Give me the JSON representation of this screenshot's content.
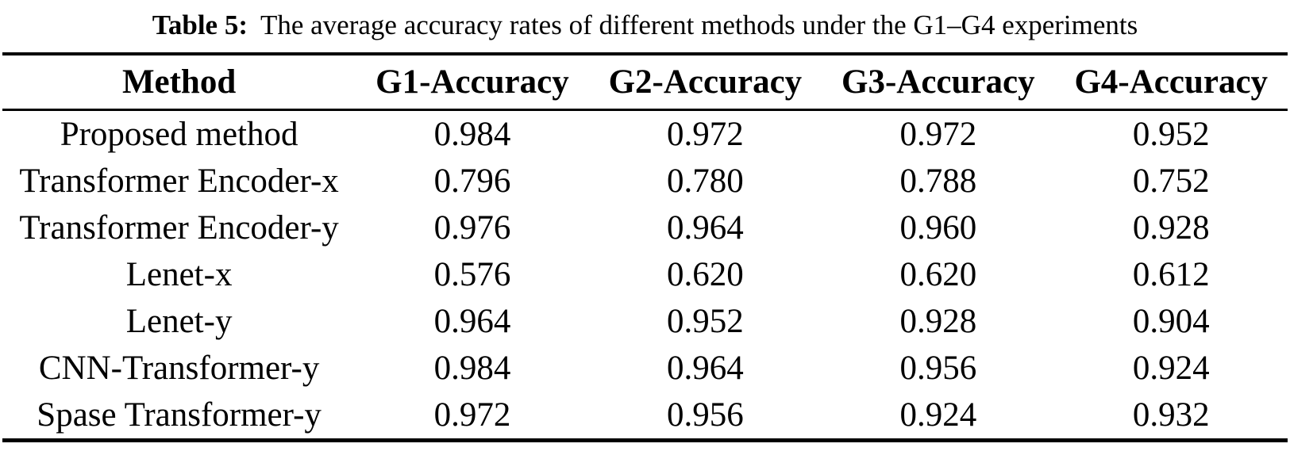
{
  "caption": {
    "label": "Table 5:",
    "text": "The average accuracy rates of different methods under the G1–G4 experiments"
  },
  "table": {
    "columns": [
      "Method",
      "G1-Accuracy",
      "G2-Accuracy",
      "G3-Accuracy",
      "G4-Accuracy"
    ],
    "rows": [
      {
        "method": "Proposed method",
        "values": [
          "0.984",
          "0.972",
          "0.972",
          "0.952"
        ]
      },
      {
        "method": "Transformer Encoder-x",
        "values": [
          "0.796",
          "0.780",
          "0.788",
          "0.752"
        ]
      },
      {
        "method": "Transformer Encoder-y",
        "values": [
          "0.976",
          "0.964",
          "0.960",
          "0.928"
        ]
      },
      {
        "method": "Lenet-x",
        "values": [
          "0.576",
          "0.620",
          "0.620",
          "0.612"
        ]
      },
      {
        "method": "Lenet-y",
        "values": [
          "0.964",
          "0.952",
          "0.928",
          "0.904"
        ]
      },
      {
        "method": "CNN-Transformer-y",
        "values": [
          "0.984",
          "0.964",
          "0.956",
          "0.924"
        ]
      },
      {
        "method": "Spase Transformer-y",
        "values": [
          "0.972",
          "0.956",
          "0.924",
          "0.932"
        ]
      }
    ]
  },
  "colors": {
    "text": "#000000",
    "background": "#ffffff",
    "rule": "#000000"
  }
}
